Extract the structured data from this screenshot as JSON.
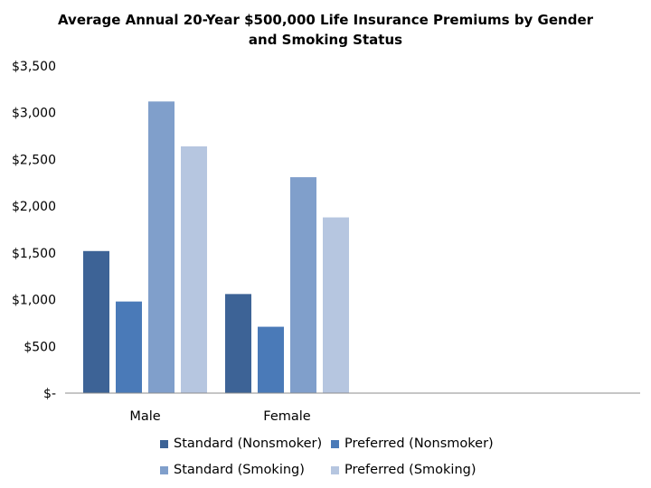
{
  "chart_data": {
    "type": "bar",
    "title": "Average Annual 20-Year $500,000 Life Insurance Premiums by Gender and Smoking Status",
    "categories": [
      "Male",
      "Female"
    ],
    "series": [
      {
        "name": "Standard (Nonsmoker)",
        "color": "#3d6396",
        "values": [
          1520,
          1060
        ]
      },
      {
        "name": "Preferred (Nonsmoker)",
        "color": "#4a7ab8",
        "values": [
          980,
          710
        ]
      },
      {
        "name": "Standard (Smoking)",
        "color": "#809fcb",
        "values": [
          3120,
          2310
        ]
      },
      {
        "name": "Preferred (Smoking)",
        "color": "#b6c6e0",
        "values": [
          2640,
          1880
        ]
      }
    ],
    "ylim": [
      0,
      3500
    ],
    "yticks": [
      {
        "value": 0,
        "label": "$-"
      },
      {
        "value": 500,
        "label": "$500"
      },
      {
        "value": 1000,
        "label": "$1,000"
      },
      {
        "value": 1500,
        "label": "$1,500"
      },
      {
        "value": 2000,
        "label": "$2,000"
      },
      {
        "value": 2500,
        "label": "$2,500"
      },
      {
        "value": 3000,
        "label": "$3,000"
      },
      {
        "value": 3500,
        "label": "$3,500"
      }
    ],
    "grid": false,
    "legend_position": "bottom"
  }
}
